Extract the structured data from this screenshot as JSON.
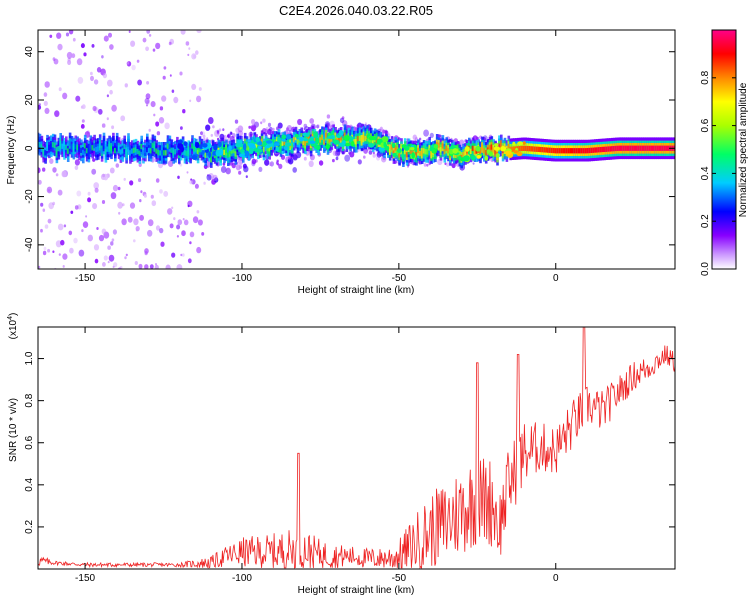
{
  "title": "C2E4.2026.040.03.22.R05",
  "colors": {
    "snr_line": "#ee2222",
    "axis": "#000000",
    "colormap": [
      "#ffffff",
      "#8800ff",
      "#0000ff",
      "#00ccff",
      "#00ff44",
      "#ffff00",
      "#ff8800",
      "#ff0000",
      "#ff0088"
    ]
  },
  "chart_data": [
    {
      "type": "heatmap",
      "title": "C2E4.2026.040.03.22.R05",
      "xlabel": "Height of straight line (km)",
      "ylabel": "Frequency (Hz)",
      "xlim": [
        -165,
        38
      ],
      "ylim": [
        -50,
        49
      ],
      "x_ticks": [
        -150,
        -100,
        -50,
        0
      ],
      "x_tick_labels": [
        "-150",
        "-100",
        "-50",
        "0"
      ],
      "y_ticks": [
        -40,
        -20,
        0,
        20,
        40
      ],
      "y_tick_labels": [
        "-40",
        "-20",
        "0",
        "20",
        "40"
      ],
      "colorbar": {
        "label": "Normalized spectral amplitude",
        "range": [
          0,
          1
        ],
        "ticks": [
          0,
          0.2,
          0.4,
          0.6,
          0.8
        ],
        "tick_labels": [
          "0.0",
          "0.2",
          "0.4",
          "0.6",
          "0.8"
        ]
      },
      "ridge": {
        "x": [
          -165,
          -120,
          -110,
          -100,
          -80,
          -65,
          -55,
          -50,
          -40,
          -30,
          -20,
          -10,
          0,
          10,
          20,
          38
        ],
        "y": [
          0,
          0,
          -2,
          0,
          3,
          4,
          2,
          -2,
          0,
          -2,
          -1,
          0,
          -1,
          -1,
          0,
          0
        ],
        "amplitude": [
          0.25,
          0.3,
          0.4,
          0.45,
          0.5,
          0.55,
          0.55,
          0.6,
          0.55,
          0.6,
          0.7,
          0.8,
          0.85,
          0.9,
          0.95,
          0.95
        ]
      }
    },
    {
      "type": "line",
      "xlabel": "Height of straight line (km)",
      "ylabel": "SNR (10 * v/v)",
      "scale_label": "(x10",
      "scale_exp": "4",
      "scale_close": ")",
      "xlim": [
        -165,
        38
      ],
      "ylim": [
        0,
        1.15
      ],
      "x_ticks": [
        -150,
        -100,
        -50,
        0
      ],
      "x_tick_labels": [
        "-150",
        "-100",
        "-50",
        "0"
      ],
      "y_ticks": [
        0.2,
        0.4,
        0.6,
        0.8,
        1.0
      ],
      "y_tick_labels": [
        "0.2",
        "0.4",
        "0.6",
        "0.8",
        "1.0"
      ],
      "series": [
        {
          "name": "SNR",
          "x": [
            -165,
            -160,
            -150,
            -140,
            -130,
            -120,
            -110,
            -105,
            -100,
            -95,
            -90,
            -85,
            -80,
            -75,
            -70,
            -65,
            -60,
            -55,
            -50,
            -45,
            -40,
            -35,
            -30,
            -25,
            -20,
            -18,
            -15,
            -10,
            -5,
            0,
            5,
            10,
            15,
            20,
            25,
            30,
            35,
            38
          ],
          "base": [
            0.04,
            0.03,
            0.02,
            0.02,
            0.02,
            0.02,
            0.03,
            0.06,
            0.08,
            0.08,
            0.08,
            0.09,
            0.09,
            0.07,
            0.06,
            0.06,
            0.05,
            0.05,
            0.06,
            0.12,
            0.18,
            0.22,
            0.28,
            0.33,
            0.32,
            0.2,
            0.4,
            0.55,
            0.58,
            0.56,
            0.68,
            0.78,
            0.75,
            0.84,
            0.92,
            0.96,
            1.02,
            0.98
          ],
          "amp": [
            0.03,
            0.01,
            0.01,
            0.01,
            0.01,
            0.01,
            0.03,
            0.05,
            0.07,
            0.08,
            0.09,
            0.1,
            0.1,
            0.07,
            0.06,
            0.05,
            0.05,
            0.05,
            0.08,
            0.14,
            0.18,
            0.2,
            0.22,
            0.22,
            0.22,
            0.18,
            0.18,
            0.16,
            0.12,
            0.12,
            0.12,
            0.1,
            0.1,
            0.08,
            0.07,
            0.06,
            0.05,
            0.05
          ],
          "spikes_x": [
            -82,
            -25,
            -12,
            9
          ],
          "spikes_y": [
            0.55,
            0.98,
            1.02,
            1.15
          ]
        }
      ]
    }
  ]
}
